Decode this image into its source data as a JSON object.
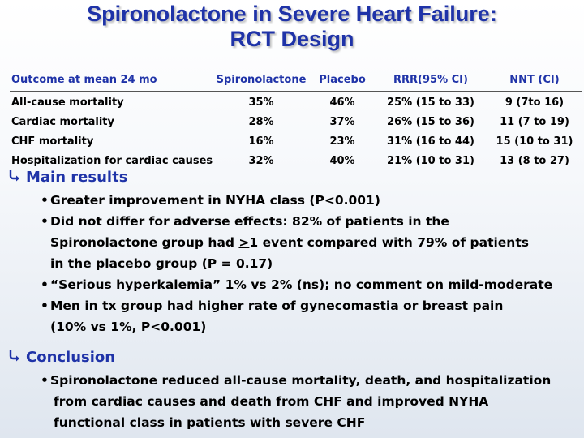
{
  "title": {
    "line1": "Spironolactone in Severe Heart Failure:",
    "line2": "RCT Design"
  },
  "table": {
    "headers": [
      "Outcome at mean 24 mo",
      "Spironolactone",
      "Placebo",
      "RRR(95% CI)",
      "NNT (CI)"
    ],
    "rows": [
      [
        "All-cause mortality",
        "35%",
        "46%",
        "25% (15 to 33)",
        "9 (7to 16)"
      ],
      [
        "Cardiac mortality",
        "28%",
        "37%",
        "26% (15 to 36)",
        "11 (7 to 19)"
      ],
      [
        "CHF mortality",
        "16%",
        "23%",
        "31% (16 to 44)",
        "15 (10 to 31)"
      ],
      [
        "Hospitalization for cardiac causes",
        "32%",
        "40%",
        "21% (10 to 31)",
        "13 (8 to 27)"
      ]
    ]
  },
  "main_results": {
    "heading": "Main results",
    "icon": "curved-arrow-icon",
    "bullet_1": "Greater improvement in NYHA class (P<0.001)",
    "bullet_2_line1": "Did not differ for adverse effects: 82% of patients in the",
    "bullet_2_line2_pre": "Spironolactone group had ",
    "bullet_2_line2_ge": ">",
    "bullet_2_line2_post": "1 event compared with 79% of patients",
    "bullet_2_line3": "in the placebo group (P = 0.17)",
    "bullet_3": "“Serious hyperkalemia” 1% vs 2% (ns); no comment on mild-moderate",
    "bullet_4_line1": "Men in tx group had higher rate of gynecomastia or breast pain",
    "bullet_4_line2": "(10% vs 1%, P<0.001)"
  },
  "conclusion": {
    "heading": "Conclusion",
    "icon": "curved-arrow-icon",
    "line1": "Spironolactone reduced all-cause mortality, death, and hospitalization",
    "line2": "from cardiac causes and death from CHF and improved NYHA",
    "line3": "functional class in patients with severe CHF"
  },
  "colors": {
    "heading_blue": "#1f33a8",
    "text": "#000000"
  }
}
